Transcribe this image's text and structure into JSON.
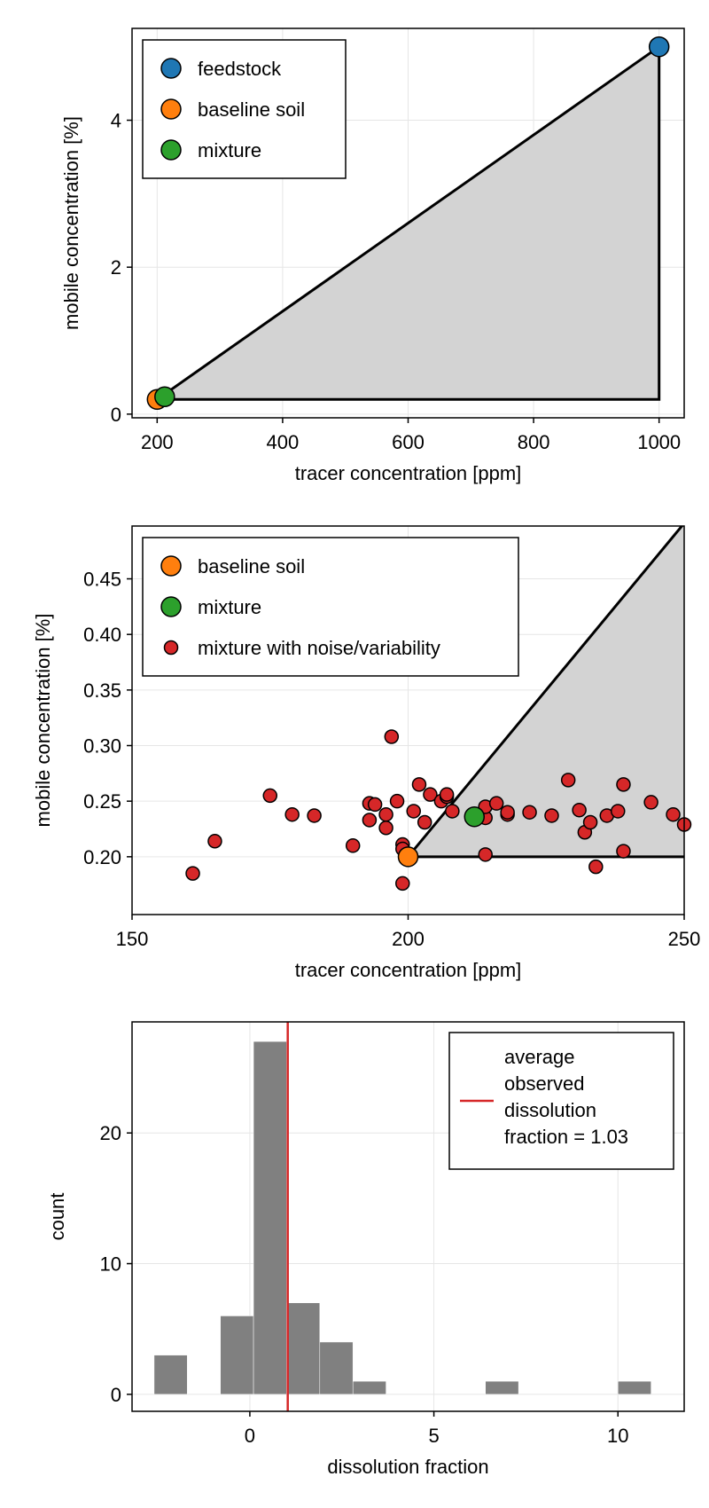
{
  "colors": {
    "feedstock": "#1f77b4",
    "baseline": "#ff7f0e",
    "mixture": "#2ca02c",
    "noise": "#d62728",
    "fill": "#d3d3d3",
    "hist": "#808080",
    "meanline": "#d62728",
    "grid": "#e6e6e6"
  },
  "chart_data": [
    {
      "type": "scatter",
      "xlabel": "tracer concentration [ppm]",
      "ylabel": "mobile concentration [%]",
      "xlim": [
        160,
        1040
      ],
      "ylim": [
        -0.05,
        5.25
      ],
      "xticks": [
        200,
        400,
        600,
        800,
        1000
      ],
      "yticks": [
        0,
        2,
        4
      ],
      "xtick_labels": [
        "200",
        "400",
        "600",
        "800",
        "1000"
      ],
      "ytick_labels": [
        "0",
        "2",
        "4"
      ],
      "polygon": [
        [
          200,
          0.2
        ],
        [
          1000,
          5.0
        ],
        [
          1000,
          0.2
        ]
      ],
      "series": [
        {
          "name": "feedstock",
          "x": [
            1000
          ],
          "y": [
            5.0
          ]
        },
        {
          "name": "baseline soil",
          "x": [
            200
          ],
          "y": [
            0.2
          ]
        },
        {
          "name": "mixture",
          "x": [
            212
          ],
          "y": [
            0.236
          ]
        }
      ],
      "legend": [
        "feedstock",
        "baseline soil",
        "mixture"
      ],
      "legend_position": "top-left"
    },
    {
      "type": "scatter",
      "xlabel": "tracer concentration [ppm]",
      "ylabel": "mobile concentration [%]",
      "xlim": [
        150,
        250
      ],
      "ylim": [
        0.148,
        0.4975
      ],
      "xticks": [
        150,
        200,
        250
      ],
      "yticks": [
        0.2,
        0.25,
        0.3,
        0.35,
        0.4,
        0.45
      ],
      "xtick_labels": [
        "150",
        "200",
        "250"
      ],
      "ytick_labels": [
        "0.20",
        "0.25",
        "0.30",
        "0.35",
        "0.40",
        "0.45"
      ],
      "polygon": [
        [
          200,
          0.2
        ],
        [
          1000,
          5.0
        ],
        [
          1000,
          0.2
        ]
      ],
      "series": [
        {
          "name": "mixture with noise/variability",
          "x": [
            161,
            165,
            175,
            179,
            183,
            190,
            193,
            193,
            194,
            196,
            196,
            197,
            198,
            199,
            199,
            199,
            201,
            202,
            203,
            204,
            206,
            207,
            207,
            208,
            212,
            214,
            214,
            214,
            216,
            218,
            218,
            222,
            226,
            229,
            231,
            232,
            233,
            234,
            236,
            238,
            239,
            239,
            244,
            248,
            250
          ],
          "y": [
            0.185,
            0.214,
            0.255,
            0.238,
            0.237,
            0.21,
            0.248,
            0.233,
            0.247,
            0.226,
            0.238,
            0.308,
            0.25,
            0.176,
            0.211,
            0.207,
            0.241,
            0.265,
            0.231,
            0.256,
            0.25,
            0.254,
            0.256,
            0.241,
            0.234,
            0.235,
            0.245,
            0.202,
            0.248,
            0.238,
            0.24,
            0.24,
            0.237,
            0.269,
            0.242,
            0.222,
            0.231,
            0.191,
            0.237,
            0.241,
            0.265,
            0.205,
            0.249,
            0.238,
            0.229
          ]
        },
        {
          "name": "baseline soil",
          "x": [
            200
          ],
          "y": [
            0.2
          ]
        },
        {
          "name": "mixture",
          "x": [
            212
          ],
          "y": [
            0.236
          ]
        }
      ],
      "legend": [
        "baseline soil",
        "mixture",
        "mixture with noise/variability"
      ],
      "legend_position": "top-left"
    },
    {
      "type": "bar",
      "subtype": "histogram",
      "xlabel": "dissolution fraction",
      "ylabel": "count",
      "xlim": [
        -3.2,
        11.8
      ],
      "ylim": [
        -1.3,
        28.5
      ],
      "xticks": [
        0,
        5,
        10
      ],
      "yticks": [
        0,
        10,
        20
      ],
      "xtick_labels": [
        "0",
        "5",
        "10"
      ],
      "ytick_labels": [
        "0",
        "10",
        "20"
      ],
      "bins": [
        {
          "from": -2.6,
          "to": -1.7,
          "count": 3
        },
        {
          "from": -0.8,
          "to": 0.1,
          "count": 6
        },
        {
          "from": 0.1,
          "to": 1.0,
          "count": 27
        },
        {
          "from": 1.0,
          "to": 1.9,
          "count": 7
        },
        {
          "from": 1.9,
          "to": 2.8,
          "count": 4
        },
        {
          "from": 2.8,
          "to": 3.7,
          "count": 1
        },
        {
          "from": 6.4,
          "to": 7.3,
          "count": 1
        },
        {
          "from": 10.0,
          "to": 10.9,
          "count": 1
        }
      ],
      "mean": 1.03,
      "legend": [
        "average\nobserved\ndissolution\nfraction = 1.03"
      ],
      "legend_position": "top-right"
    }
  ]
}
